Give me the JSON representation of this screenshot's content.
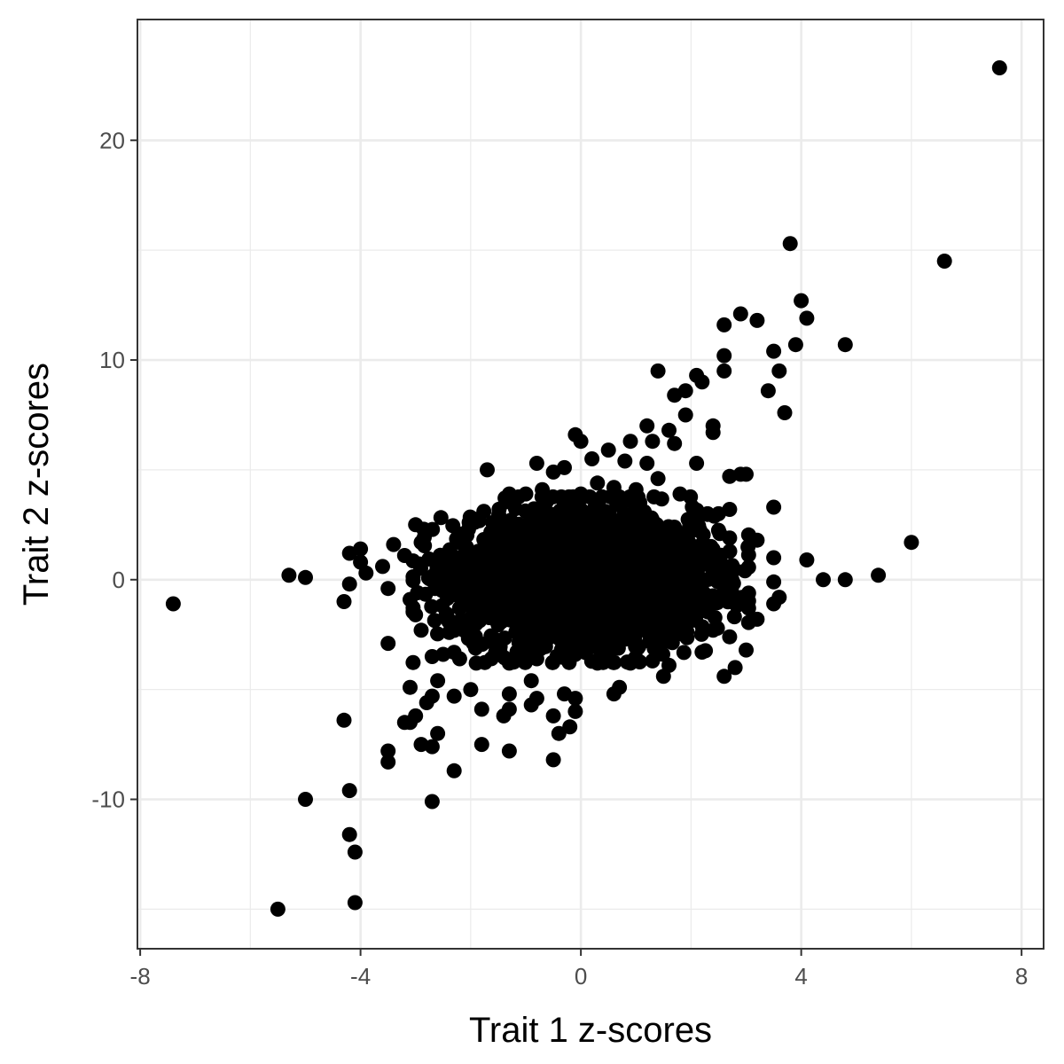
{
  "chart_data": {
    "type": "scatter",
    "title": "",
    "xlabel": "Trait 1 z-scores",
    "ylabel": "Trait 2 z-scores",
    "xlim": [
      -8.05,
      8.4
    ],
    "ylim": [
      -16.8,
      25.5
    ],
    "x_ticks": [
      -8,
      -4,
      0,
      4,
      8
    ],
    "y_ticks": [
      -10,
      0,
      10,
      20
    ],
    "x_tick_labels": [
      "-8",
      "-4",
      "0",
      "4",
      "8"
    ],
    "y_tick_labels": [
      "-10",
      "0",
      "10",
      "20"
    ],
    "x_minor_grid": [
      -6,
      -2,
      2,
      6
    ],
    "y_minor_grid": [
      -15,
      -5,
      5,
      15
    ],
    "grid": true,
    "point_color": "#000000",
    "grid_color": "#ebebeb",
    "panel_border_color": "#333333",
    "dense_cluster": {
      "center": [
        0,
        0
      ],
      "x_sd": 1.05,
      "y_sd": 1.45,
      "n_points": 3200
    },
    "points": [
      [
        7.6,
        23.3
      ],
      [
        6.6,
        14.5
      ],
      [
        3.8,
        15.3
      ],
      [
        4.0,
        12.7
      ],
      [
        4.1,
        11.9
      ],
      [
        2.9,
        12.1
      ],
      [
        3.2,
        11.8
      ],
      [
        2.6,
        11.6
      ],
      [
        3.9,
        10.7
      ],
      [
        4.8,
        10.7
      ],
      [
        3.5,
        10.4
      ],
      [
        2.6,
        10.2
      ],
      [
        1.4,
        9.5
      ],
      [
        2.1,
        9.3
      ],
      [
        2.2,
        9.0
      ],
      [
        2.6,
        9.5
      ],
      [
        3.6,
        9.5
      ],
      [
        3.4,
        8.6
      ],
      [
        1.7,
        8.4
      ],
      [
        1.9,
        8.6
      ],
      [
        3.7,
        7.6
      ],
      [
        1.9,
        7.5
      ],
      [
        2.4,
        7.0
      ],
      [
        2.4,
        6.7
      ],
      [
        1.2,
        7.0
      ],
      [
        1.6,
        6.8
      ],
      [
        1.7,
        6.2
      ],
      [
        -0.1,
        6.6
      ],
      [
        0.0,
        6.3
      ],
      [
        0.5,
        5.9
      ],
      [
        0.9,
        6.3
      ],
      [
        1.3,
        6.3
      ],
      [
        2.1,
        5.3
      ],
      [
        -0.8,
        5.3
      ],
      [
        -0.3,
        5.1
      ],
      [
        -1.7,
        5.0
      ],
      [
        0.2,
        5.5
      ],
      [
        0.8,
        5.4
      ],
      [
        1.2,
        5.3
      ],
      [
        2.7,
        4.7
      ],
      [
        2.9,
        4.8
      ],
      [
        3.0,
        4.8
      ],
      [
        1.4,
        4.6
      ],
      [
        0.3,
        4.4
      ],
      [
        -0.5,
        4.9
      ],
      [
        1.8,
        3.9
      ],
      [
        3.5,
        3.3
      ],
      [
        2.7,
        3.2
      ],
      [
        6.0,
        1.7
      ],
      [
        4.1,
        0.9
      ],
      [
        4.4,
        0.0
      ],
      [
        4.8,
        0.0
      ],
      [
        5.4,
        0.2
      ],
      [
        3.2,
        1.8
      ],
      [
        3.5,
        1.0
      ],
      [
        3.5,
        -0.1
      ],
      [
        3.6,
        -0.8
      ],
      [
        3.5,
        -1.1
      ],
      [
        3.2,
        -1.8
      ],
      [
        3.0,
        -3.2
      ],
      [
        2.8,
        -4.0
      ],
      [
        2.6,
        -4.4
      ],
      [
        1.5,
        -4.4
      ],
      [
        1.6,
        -3.9
      ],
      [
        0.7,
        -4.9
      ],
      [
        0.6,
        -5.2
      ],
      [
        0.9,
        -3.8
      ],
      [
        -0.1,
        -5.4
      ],
      [
        -0.3,
        -5.2
      ],
      [
        -0.1,
        -6.0
      ],
      [
        -0.2,
        -6.7
      ],
      [
        -0.4,
        -7.0
      ],
      [
        -0.5,
        -6.2
      ],
      [
        -0.5,
        -8.2
      ],
      [
        -0.8,
        -5.4
      ],
      [
        -0.9,
        -4.6
      ],
      [
        -1.3,
        -5.9
      ],
      [
        -1.3,
        -5.2
      ],
      [
        -1.3,
        -7.8
      ],
      [
        -1.4,
        -6.2
      ],
      [
        -1.8,
        -7.5
      ],
      [
        -1.8,
        -5.9
      ],
      [
        -2.0,
        -5.0
      ],
      [
        -2.3,
        -5.3
      ],
      [
        -2.3,
        -8.7
      ],
      [
        -2.6,
        -4.6
      ],
      [
        -2.7,
        -5.3
      ],
      [
        -2.8,
        -5.6
      ],
      [
        -2.6,
        -7.0
      ],
      [
        -2.7,
        -7.6
      ],
      [
        -2.9,
        -7.5
      ],
      [
        -3.0,
        -6.2
      ],
      [
        -3.1,
        -6.5
      ],
      [
        -3.2,
        -6.5
      ],
      [
        -3.1,
        -4.9
      ],
      [
        -2.7,
        -10.1
      ],
      [
        -3.5,
        -7.8
      ],
      [
        -3.5,
        -8.3
      ],
      [
        -4.3,
        -6.4
      ],
      [
        -4.2,
        -9.6
      ],
      [
        -4.2,
        -11.6
      ],
      [
        -4.1,
        -12.4
      ],
      [
        -4.1,
        -14.7
      ],
      [
        -5.0,
        -10.0
      ],
      [
        -5.5,
        -15.0
      ],
      [
        -7.4,
        -1.1
      ],
      [
        -5.3,
        0.2
      ],
      [
        -5.0,
        0.1
      ],
      [
        -4.3,
        -1.0
      ],
      [
        -4.2,
        -0.2
      ],
      [
        -4.2,
        1.2
      ],
      [
        -4.0,
        1.4
      ],
      [
        -4.0,
        0.8
      ],
      [
        -3.9,
        0.3
      ],
      [
        -3.6,
        0.6
      ],
      [
        -3.5,
        -0.4
      ],
      [
        -3.5,
        -2.9
      ],
      [
        -3.4,
        1.6
      ],
      [
        -3.2,
        1.1
      ],
      [
        -3.1,
        -0.9
      ],
      [
        -3.0,
        2.5
      ],
      [
        -2.9,
        1.7
      ],
      [
        -2.8,
        2.2
      ],
      [
        -3.0,
        -1.6
      ],
      [
        -2.9,
        -2.3
      ],
      [
        -2.7,
        -3.5
      ],
      [
        -2.5,
        -3.4
      ],
      [
        -2.2,
        -3.6
      ],
      [
        -1.9,
        -3.8
      ],
      [
        -1.3,
        3.9
      ],
      [
        -1.0,
        3.9
      ],
      [
        -0.7,
        4.1
      ],
      [
        0.0,
        3.9
      ],
      [
        0.6,
        4.2
      ],
      [
        1.0,
        4.1
      ],
      [
        2.3,
        3.0
      ],
      [
        2.5,
        3.0
      ],
      [
        2.7,
        1.9
      ],
      [
        -1.3,
        -3.8
      ],
      [
        -0.8,
        -3.6
      ],
      [
        0.3,
        -3.8
      ],
      [
        1.3,
        -3.7
      ],
      [
        2.2,
        -3.3
      ],
      [
        2.7,
        -2.6
      ],
      [
        2.4,
        -2.3
      ],
      [
        -0.9,
        -5.7
      ],
      [
        -2.4,
        -1.9
      ],
      [
        2.0,
        2.2
      ],
      [
        -1.6,
        2.6
      ]
    ]
  }
}
